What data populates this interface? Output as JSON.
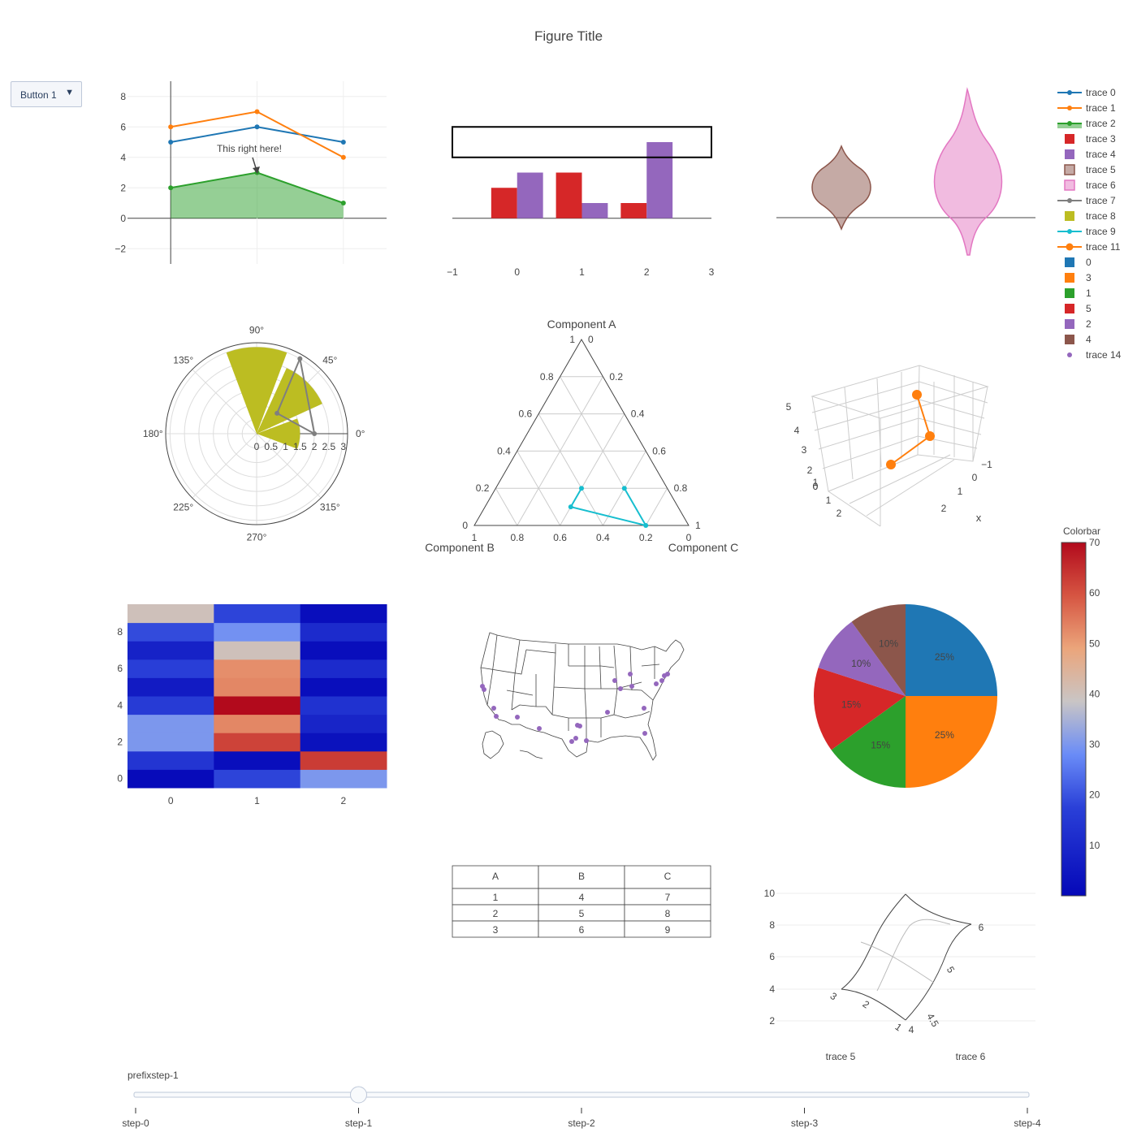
{
  "figure": {
    "title": "Figure Title"
  },
  "dropdown": {
    "label": "Button 1",
    "arrow": "▼"
  },
  "slider": {
    "prefix": "prefixstep-1",
    "steps": [
      "step-0",
      "step-1",
      "step-2",
      "step-3",
      "step-4"
    ],
    "active_index": 1
  },
  "colors": {
    "t0": "#1f77b4",
    "t1": "#ff7f0e",
    "t2": "#2ca02c",
    "t3": "#d62728",
    "t4": "#9467bd",
    "t5": "#8c564b",
    "t6": "#e377c2",
    "t7": "#7f7f7f",
    "t8": "#bcbd22",
    "t9": "#17becf",
    "t14": "#9467bd"
  },
  "legend": {
    "items": [
      {
        "name": "trace 0",
        "kind": "line",
        "color": "#1f77b4"
      },
      {
        "name": "trace 1",
        "kind": "line",
        "color": "#ff7f0e"
      },
      {
        "name": "trace 2",
        "kind": "fill",
        "color": "#2ca02c"
      },
      {
        "name": "trace 3",
        "kind": "box",
        "color": "#d62728"
      },
      {
        "name": "trace 4",
        "kind": "box",
        "color": "#9467bd"
      },
      {
        "name": "trace 5",
        "kind": "violin",
        "color": "#8c564b"
      },
      {
        "name": "trace 6",
        "kind": "violin",
        "color": "#e377c2"
      },
      {
        "name": "trace 7",
        "kind": "line",
        "color": "#7f7f7f"
      },
      {
        "name": "trace 8",
        "kind": "box",
        "color": "#bcbd22"
      },
      {
        "name": "trace 9",
        "kind": "line",
        "color": "#17becf"
      },
      {
        "name": "trace 11",
        "kind": "bigline",
        "color": "#ff7f0e"
      },
      {
        "name": "0",
        "kind": "box",
        "color": "#1f77b4"
      },
      {
        "name": "3",
        "kind": "box",
        "color": "#ff7f0e"
      },
      {
        "name": "1",
        "kind": "box",
        "color": "#2ca02c"
      },
      {
        "name": "5",
        "kind": "box",
        "color": "#d62728"
      },
      {
        "name": "2",
        "kind": "box",
        "color": "#9467bd"
      },
      {
        "name": "4",
        "kind": "box",
        "color": "#8c564b"
      },
      {
        "name": "trace 14",
        "kind": "dot",
        "color": "#9467bd"
      }
    ]
  },
  "chart_data": [
    {
      "id": "lines",
      "type": "line",
      "x": [
        0,
        1,
        2
      ],
      "series": [
        {
          "name": "trace 0",
          "values": [
            5,
            6,
            5
          ]
        },
        {
          "name": "trace 1",
          "values": [
            6,
            7,
            4
          ]
        },
        {
          "name": "trace 2",
          "values": [
            2,
            3,
            1
          ],
          "fill": "tozeroy"
        }
      ],
      "yticks": [
        -2,
        0,
        2,
        4,
        6,
        8
      ],
      "ylim": [
        -3,
        9
      ],
      "xlim": [
        -0.5,
        2.5
      ],
      "annotation": {
        "text": "This right here!",
        "x": 1,
        "y": 3
      }
    },
    {
      "id": "bars",
      "type": "bar",
      "categories": [
        0,
        1,
        2
      ],
      "series": [
        {
          "name": "trace 3",
          "values": [
            2,
            3,
            1
          ]
        },
        {
          "name": "trace 4",
          "values": [
            3,
            1,
            5
          ]
        }
      ],
      "xticks": [
        "−1",
        "0",
        "1",
        "2",
        "3"
      ],
      "xlim": [
        -1,
        3
      ],
      "ylim": [
        -3,
        9
      ],
      "shape_rect": {
        "x0": -1,
        "x1": 3,
        "y0": 4,
        "y1": 6
      }
    },
    {
      "id": "violins",
      "type": "violin",
      "series": [
        {
          "name": "trace 5"
        },
        {
          "name": "trace 6"
        }
      ]
    },
    {
      "id": "polar",
      "type": "barpolar",
      "angular_ticks": [
        "0°",
        "45°",
        "90°",
        "135°",
        "180°",
        "225°",
        "270°",
        "315°"
      ],
      "radial_ticks": [
        "0",
        "0.5",
        "1",
        "1.5",
        "2",
        "2.5",
        "3"
      ],
      "bars": [
        {
          "theta": 0,
          "r": 1.5
        },
        {
          "theta": 45,
          "r": 2.5
        },
        {
          "theta": 90,
          "r": 3
        }
      ],
      "line": {
        "name": "trace 7",
        "r": [
          1,
          3,
          2
        ],
        "theta": [
          45,
          60,
          0
        ]
      }
    },
    {
      "id": "ternary",
      "type": "scatterternary",
      "axis_titles": {
        "a": "Component A",
        "b": "Component B",
        "c": "Component C"
      },
      "ticks": [
        "0",
        "0.2",
        "0.4",
        "0.6",
        "0.8",
        "1"
      ],
      "series": [
        {
          "name": "trace 9",
          "a": [
            0.2,
            0.1,
            0,
            0.2
          ],
          "b": [
            0.4,
            0.5,
            0.2,
            0.2
          ],
          "c": [
            0.4,
            0.4,
            0.8,
            0.6
          ]
        }
      ]
    },
    {
      "id": "scatter3d",
      "type": "scatter3d",
      "series": [
        {
          "name": "trace 11",
          "x": [
            1,
            2,
            3
          ],
          "y": [
            1,
            2,
            3
          ],
          "z": [
            1,
            2,
            4
          ]
        }
      ],
      "z_ticks": [
        "0",
        "1",
        "2",
        "3",
        "4",
        "5"
      ],
      "y_ticks": [
        "−1",
        "0",
        "1",
        "2"
      ],
      "x_ticks": [
        "0",
        "1",
        "2"
      ],
      "x_title": "x"
    },
    {
      "id": "heatmap",
      "type": "heatmap",
      "xticks": [
        "0",
        "1",
        "2"
      ],
      "yticks": [
        "0",
        "2",
        "4",
        "6",
        "8"
      ],
      "z": [
        [
          1,
          18,
          30
        ],
        [
          14,
          2,
          63
        ],
        [
          30,
          62,
          3
        ],
        [
          30,
          53,
          9
        ],
        [
          16,
          70,
          13
        ],
        [
          6,
          53,
          2
        ],
        [
          17,
          52,
          11
        ],
        [
          8,
          40,
          2
        ],
        [
          19,
          29,
          11
        ],
        [
          40,
          18,
          2
        ]
      ],
      "zlim": [
        0,
        70
      ],
      "colorbar": {
        "title": "Colorbar",
        "ticks": [
          "10",
          "20",
          "30",
          "40",
          "50",
          "60",
          "70"
        ]
      }
    },
    {
      "id": "geo",
      "type": "scattergeo",
      "scope": "usa",
      "series": [
        {
          "name": "trace 14",
          "count": 22
        }
      ]
    },
    {
      "id": "pie",
      "type": "pie",
      "labels": [
        "0",
        "3",
        "1",
        "5",
        "2",
        "4"
      ],
      "values": [
        25,
        25,
        15,
        15,
        10,
        10
      ],
      "text": [
        "25%",
        "25%",
        "15%",
        "15%",
        "10%",
        "10%"
      ]
    },
    {
      "id": "table",
      "type": "table",
      "header": [
        "A",
        "B",
        "C"
      ],
      "rows": [
        [
          "1",
          "4",
          "7"
        ],
        [
          "2",
          "5",
          "8"
        ],
        [
          "3",
          "6",
          "9"
        ]
      ]
    },
    {
      "id": "carpet",
      "type": "carpet",
      "yticks": [
        "2",
        "4",
        "6",
        "8",
        "10"
      ],
      "a_ticks": [
        "4",
        "4.5",
        "5",
        "6"
      ],
      "b_ticks": [
        "1",
        "2",
        "3"
      ],
      "x_labels": [
        "trace 5",
        "trace 6"
      ]
    }
  ]
}
